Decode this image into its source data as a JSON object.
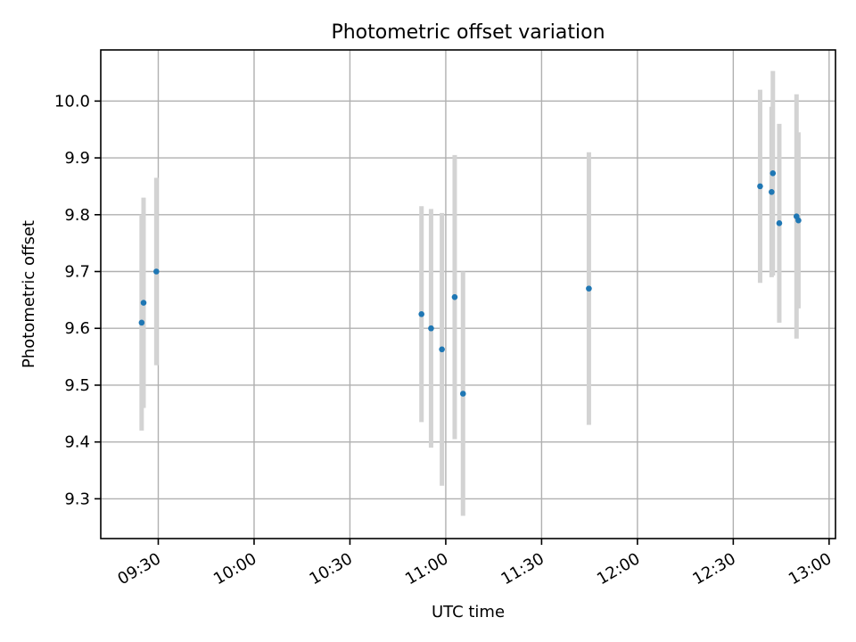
{
  "chart_data": {
    "type": "scatter",
    "title": "Photometric offset variation",
    "xlabel": "UTC time",
    "ylabel": "Photometric offset",
    "x_axis": "time",
    "xlim": [
      "09:12",
      "13:02"
    ],
    "ylim": [
      9.23,
      10.09
    ],
    "x_ticks": [
      "09:30",
      "10:00",
      "10:30",
      "11:00",
      "11:30",
      "12:00",
      "12:30",
      "13:00"
    ],
    "y_ticks": [
      9.3,
      9.4,
      9.5,
      9.6,
      9.7,
      9.8,
      9.9,
      10.0
    ],
    "grid": true,
    "marker_color": "#1f77b4",
    "errorbar_color": "#d3d3d3",
    "series": [
      {
        "points": [
          {
            "x": "09:24:48",
            "y": 9.61,
            "yerr": 0.19
          },
          {
            "x": "09:25:24",
            "y": 9.645,
            "yerr": 0.185
          },
          {
            "x": "09:29:24",
            "y": 9.7,
            "yerr": 0.165
          },
          {
            "x": "10:52:24",
            "y": 9.625,
            "yerr": 0.19
          },
          {
            "x": "10:55:24",
            "y": 9.6,
            "yerr": 0.21
          },
          {
            "x": "10:58:48",
            "y": 9.563,
            "yerr": 0.24
          },
          {
            "x": "11:02:48",
            "y": 9.655,
            "yerr": 0.25
          },
          {
            "x": "11:05:24",
            "y": 9.485,
            "yerr": 0.215
          },
          {
            "x": "11:44:48",
            "y": 9.67,
            "yerr": 0.24
          },
          {
            "x": "12:38:24",
            "y": 9.85,
            "yerr": 0.17
          },
          {
            "x": "12:42:00",
            "y": 9.84,
            "yerr": 0.15
          },
          {
            "x": "12:42:24",
            "y": 9.873,
            "yerr": 0.18
          },
          {
            "x": "12:44:24",
            "y": 9.785,
            "yerr": 0.175
          },
          {
            "x": "12:49:48",
            "y": 9.797,
            "yerr": 0.215
          },
          {
            "x": "12:50:24",
            "y": 9.79,
            "yerr": 0.155
          }
        ]
      }
    ]
  }
}
